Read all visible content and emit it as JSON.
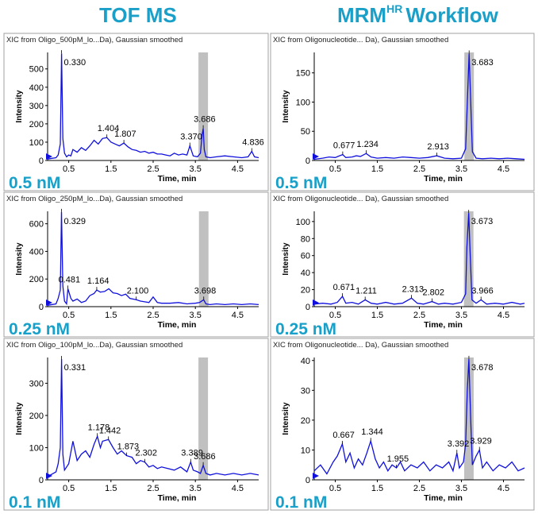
{
  "columns": [
    {
      "title": "TOF MS"
    },
    {
      "title_main": "MRM",
      "title_sup": "HR",
      "title_rest": "Workflow"
    }
  ],
  "colors": {
    "title": "#1aa0c8",
    "conc": "#1aa0c8",
    "trace": "#1010dd",
    "band": "#c0c0c0",
    "grid": "#888888",
    "panel_border": "#a0a0a0"
  },
  "chart_data": [
    {
      "type": "line",
      "title": "XIC from Oligo_500pM_lo...Da), Gaussian smoothed",
      "xlabel": "Time, min",
      "ylabel": "Intensity",
      "concentration": "0.5 nM",
      "xlim": [
        0,
        5
      ],
      "ylim": [
        0,
        590
      ],
      "xticks": [
        0.5,
        1.5,
        2.5,
        3.5,
        4.5
      ],
      "yticks": [
        0,
        100,
        200,
        300,
        400,
        500
      ],
      "band_x": 3.686,
      "main_peak": {
        "x": 0.33,
        "y": 585
      },
      "series": [
        {
          "x": [
            0,
            0.2,
            0.25,
            0.3,
            0.33,
            0.36,
            0.4,
            0.45,
            0.5,
            0.55,
            0.6,
            0.7,
            0.8,
            0.9,
            1.0,
            1.05,
            1.1,
            1.2,
            1.3,
            1.404,
            1.5,
            1.6,
            1.7,
            1.807,
            1.9,
            2.0,
            2.1,
            2.2,
            2.3,
            2.4,
            2.5,
            2.6,
            2.7,
            2.8,
            2.9,
            3.0,
            3.1,
            3.2,
            3.3,
            3.37,
            3.45,
            3.55,
            3.62,
            3.66,
            3.686,
            3.71,
            3.75,
            3.85,
            4.0,
            4.2,
            4.4,
            4.6,
            4.75,
            4.836,
            4.9,
            5.0
          ],
          "y": [
            8,
            15,
            30,
            90,
            585,
            120,
            40,
            20,
            30,
            25,
            60,
            45,
            70,
            55,
            80,
            95,
            110,
            90,
            120,
            125,
            100,
            90,
            80,
            95,
            75,
            60,
            55,
            45,
            50,
            40,
            45,
            35,
            35,
            30,
            25,
            40,
            30,
            35,
            30,
            80,
            25,
            20,
            40,
            140,
            175,
            60,
            20,
            15,
            20,
            25,
            20,
            15,
            20,
            50,
            20,
            15
          ]
        }
      ],
      "annotations": [
        {
          "x": 0.33,
          "y": 585,
          "text": "0.330"
        },
        {
          "x": 1.404,
          "y": 125,
          "text": "1.404"
        },
        {
          "x": 1.807,
          "y": 95,
          "text": "1.807"
        },
        {
          "x": 3.37,
          "y": 80,
          "text": "3.370"
        },
        {
          "x": 3.686,
          "y": 175,
          "text": "3.686"
        },
        {
          "x": 4.836,
          "y": 50,
          "text": "4.836"
        }
      ]
    },
    {
      "type": "line",
      "title": "XIC from Oligonucleotide... Da), Gaussian smoothed",
      "xlabel": "Time, min",
      "ylabel": "Intensity",
      "concentration": "0.5 nM",
      "xlim": [
        0,
        5
      ],
      "ylim": [
        0,
        185
      ],
      "xticks": [
        0.5,
        1.5,
        2.5,
        3.5,
        4.5
      ],
      "yticks": [
        0,
        50,
        100,
        150
      ],
      "band_x": 3.683,
      "main_peak": {
        "x": 3.683,
        "y": 183
      },
      "series": [
        {
          "x": [
            0,
            0.2,
            0.35,
            0.5,
            0.6,
            0.677,
            0.75,
            0.9,
            1.0,
            1.1,
            1.234,
            1.35,
            1.5,
            1.7,
            1.9,
            2.1,
            2.3,
            2.5,
            2.7,
            2.913,
            3.1,
            3.3,
            3.5,
            3.6,
            3.65,
            3.683,
            3.72,
            3.76,
            3.85,
            4.0,
            4.2,
            4.4,
            4.6,
            4.8,
            5.0
          ],
          "y": [
            2,
            4,
            6,
            5,
            8,
            10,
            5,
            6,
            8,
            7,
            12,
            6,
            4,
            5,
            4,
            6,
            5,
            4,
            5,
            8,
            4,
            3,
            4,
            20,
            120,
            183,
            100,
            15,
            4,
            3,
            4,
            3,
            4,
            3,
            2
          ]
        }
      ],
      "annotations": [
        {
          "x": 0.677,
          "y": 10,
          "text": "0.677"
        },
        {
          "x": 1.234,
          "y": 12,
          "text": "1.234"
        },
        {
          "x": 2.913,
          "y": 8,
          "text": "2.913"
        },
        {
          "x": 3.683,
          "y": 183,
          "text": "3.683"
        }
      ]
    },
    {
      "type": "line",
      "title": "XIC from Oligo_250pM_lo...Da), Gaussian smoothed",
      "xlabel": "Time, min",
      "ylabel": "Intensity",
      "concentration": "0.25 nM",
      "xlim": [
        0,
        5
      ],
      "ylim": [
        0,
        690
      ],
      "xticks": [
        0.5,
        1.5,
        2.5,
        3.5,
        4.5
      ],
      "yticks": [
        0,
        200,
        400,
        600
      ],
      "band_x": 3.698,
      "main_peak": {
        "x": 0.329,
        "y": 685
      },
      "series": [
        {
          "x": [
            0,
            0.2,
            0.25,
            0.3,
            0.329,
            0.36,
            0.4,
            0.45,
            0.481,
            0.55,
            0.6,
            0.7,
            0.8,
            0.9,
            1.0,
            1.1,
            1.164,
            1.25,
            1.35,
            1.45,
            1.55,
            1.65,
            1.75,
            1.85,
            1.95,
            2.1,
            2.2,
            2.3,
            2.4,
            2.5,
            2.6,
            2.7,
            2.9,
            3.1,
            3.3,
            3.5,
            3.6,
            3.698,
            3.75,
            3.85,
            4.0,
            4.2,
            4.4,
            4.6,
            4.8,
            5.0
          ],
          "y": [
            10,
            20,
            60,
            120,
            685,
            150,
            40,
            20,
            130,
            60,
            40,
            55,
            30,
            40,
            80,
            95,
            120,
            105,
            110,
            130,
            100,
            95,
            80,
            90,
            60,
            50,
            40,
            35,
            30,
            70,
            30,
            25,
            25,
            30,
            20,
            25,
            30,
            50,
            20,
            15,
            20,
            15,
            20,
            15,
            20,
            15
          ]
        }
      ],
      "annotations": [
        {
          "x": 0.329,
          "y": 685,
          "text": "0.329"
        },
        {
          "x": 0.481,
          "y": 130,
          "text": "0.481"
        },
        {
          "x": 1.164,
          "y": 120,
          "text": "1.164"
        },
        {
          "x": 2.1,
          "y": 50,
          "text": "2.100"
        },
        {
          "x": 3.698,
          "y": 50,
          "text": "3.698"
        }
      ]
    },
    {
      "type": "line",
      "title": "XIC from Oligonucleotide... Da), Gaussian smoothed",
      "xlabel": "Time, min",
      "ylabel": "Intensity",
      "concentration": "0.25 nM",
      "xlim": [
        0,
        5
      ],
      "ylim": [
        0,
        112
      ],
      "xticks": [
        0.5,
        1.5,
        2.5,
        3.5,
        4.5
      ],
      "yticks": [
        0,
        20,
        40,
        60,
        80,
        100
      ],
      "band_x": 3.673,
      "main_peak": {
        "x": 3.673,
        "y": 110
      },
      "series": [
        {
          "x": [
            0,
            0.2,
            0.4,
            0.55,
            0.671,
            0.75,
            0.9,
            1.05,
            1.211,
            1.35,
            1.5,
            1.7,
            1.9,
            2.1,
            2.313,
            2.45,
            2.6,
            2.802,
            2.95,
            3.1,
            3.3,
            3.5,
            3.6,
            3.63,
            3.673,
            3.71,
            3.75,
            3.85,
            3.966,
            4.1,
            4.3,
            4.5,
            4.7,
            4.9,
            5.0
          ],
          "y": [
            3,
            4,
            3,
            5,
            12,
            4,
            5,
            3,
            8,
            4,
            3,
            5,
            3,
            4,
            10,
            4,
            3,
            6,
            3,
            4,
            3,
            5,
            15,
            70,
            110,
            60,
            8,
            4,
            8,
            3,
            4,
            3,
            5,
            3,
            4
          ]
        }
      ],
      "annotations": [
        {
          "x": 0.671,
          "y": 12,
          "text": "0.671"
        },
        {
          "x": 1.211,
          "y": 8,
          "text": "1.211"
        },
        {
          "x": 2.313,
          "y": 10,
          "text": "2.313"
        },
        {
          "x": 2.802,
          "y": 6,
          "text": "2.802"
        },
        {
          "x": 3.673,
          "y": 110,
          "text": "3.673"
        },
        {
          "x": 3.966,
          "y": 8,
          "text": "3.966"
        }
      ]
    },
    {
      "type": "line",
      "title": "XIC from Oligo_100pM_lo...Da), Gaussian smoothed",
      "xlabel": "Time, min",
      "ylabel": "Intensity",
      "concentration": "0.1 nM",
      "xlim": [
        0,
        5
      ],
      "ylim": [
        0,
        380
      ],
      "xticks": [
        0.5,
        1.5,
        2.5,
        3.5,
        4.5
      ],
      "yticks": [
        0,
        100,
        200,
        300
      ],
      "band_x": 3.686,
      "main_peak": {
        "x": 0.331,
        "y": 375
      },
      "series": [
        {
          "x": [
            0,
            0.2,
            0.25,
            0.3,
            0.331,
            0.36,
            0.4,
            0.5,
            0.6,
            0.7,
            0.8,
            0.9,
            1.0,
            1.1,
            1.178,
            1.25,
            1.3,
            1.442,
            1.55,
            1.65,
            1.75,
            1.873,
            2.0,
            2.1,
            2.2,
            2.302,
            2.4,
            2.5,
            2.6,
            2.7,
            2.85,
            3.0,
            3.15,
            3.3,
            3.389,
            3.45,
            3.55,
            3.62,
            3.686,
            3.75,
            3.85,
            4.0,
            4.2,
            4.4,
            4.6,
            4.8,
            5.0
          ],
          "y": [
            10,
            25,
            50,
            100,
            375,
            80,
            30,
            50,
            120,
            60,
            80,
            90,
            70,
            110,
            135,
            100,
            120,
            125,
            100,
            80,
            90,
            75,
            70,
            50,
            60,
            55,
            40,
            45,
            35,
            40,
            35,
            30,
            40,
            25,
            55,
            30,
            25,
            20,
            45,
            20,
            15,
            20,
            15,
            20,
            15,
            20,
            15
          ]
        }
      ],
      "annotations": [
        {
          "x": 0.331,
          "y": 375,
          "text": "0.331"
        },
        {
          "x": 1.178,
          "y": 135,
          "text": "1.178"
        },
        {
          "x": 1.442,
          "y": 125,
          "text": "1.442"
        },
        {
          "x": 1.873,
          "y": 75,
          "text": "1.873"
        },
        {
          "x": 2.302,
          "y": 55,
          "text": "2.302"
        },
        {
          "x": 3.389,
          "y": 55,
          "text": "3.389"
        },
        {
          "x": 3.686,
          "y": 45,
          "text": "3.686"
        }
      ]
    },
    {
      "type": "line",
      "title": "XIC from Oligonucleotide... Da), Gaussian smoothed",
      "xlabel": "Time, min",
      "ylabel": "Intensity",
      "concentration": "0.1 nM",
      "xlim": [
        0,
        5
      ],
      "ylim": [
        0,
        41
      ],
      "xticks": [
        0.5,
        1.5,
        2.5,
        3.5,
        4.5
      ],
      "yticks": [
        0,
        10,
        20,
        30,
        40
      ],
      "band_x": 3.678,
      "main_peak": {
        "x": 3.678,
        "y": 40.5
      },
      "series": [
        {
          "x": [
            0,
            0.15,
            0.3,
            0.45,
            0.55,
            0.667,
            0.75,
            0.85,
            0.95,
            1.05,
            1.15,
            1.25,
            1.344,
            1.45,
            1.55,
            1.65,
            1.75,
            1.85,
            1.955,
            2.05,
            2.15,
            2.3,
            2.45,
            2.6,
            2.75,
            2.9,
            3.05,
            3.2,
            3.3,
            3.392,
            3.45,
            3.55,
            3.6,
            3.64,
            3.678,
            3.72,
            3.76,
            3.85,
            3.929,
            4.0,
            4.1,
            4.25,
            4.4,
            4.55,
            4.7,
            4.85,
            5.0
          ],
          "y": [
            3,
            5,
            2,
            6,
            8,
            12,
            6,
            9,
            4,
            7,
            5,
            9,
            13,
            7,
            4,
            6,
            3,
            5,
            4,
            6,
            3,
            5,
            4,
            6,
            3,
            5,
            4,
            6,
            3,
            9,
            4,
            6,
            12,
            30,
            40.5,
            20,
            5,
            8,
            10,
            4,
            6,
            3,
            5,
            4,
            6,
            3,
            4
          ]
        }
      ],
      "annotations": [
        {
          "x": 0.667,
          "y": 12,
          "text": "0.667"
        },
        {
          "x": 1.344,
          "y": 13,
          "text": "1.344"
        },
        {
          "x": 1.955,
          "y": 4,
          "text": "1.955"
        },
        {
          "x": 3.392,
          "y": 9,
          "text": "3.392"
        },
        {
          "x": 3.678,
          "y": 40.5,
          "text": "3.678"
        },
        {
          "x": 3.929,
          "y": 10,
          "text": "3.929"
        }
      ]
    }
  ]
}
